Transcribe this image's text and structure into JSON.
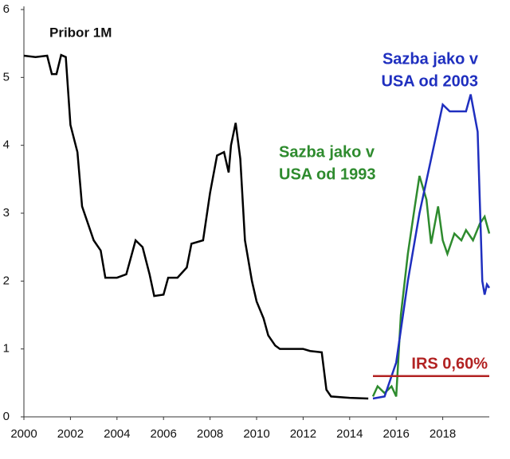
{
  "chart_data": {
    "type": "line",
    "xlim": [
      2000,
      2020
    ],
    "xticks": [
      2000,
      2002,
      2004,
      2006,
      2008,
      2010,
      2012,
      2014,
      2016,
      2018
    ],
    "ylim": [
      0,
      6
    ],
    "yticks": [
      0,
      1,
      2,
      3,
      4,
      5,
      6
    ],
    "grid": false,
    "series": [
      {
        "name": "Pribor 1M",
        "color": "#000000",
        "x": [
          2000,
          2000.5,
          2001,
          2001.2,
          2001.4,
          2001.6,
          2001.8,
          2002,
          2002.3,
          2002.5,
          2002.8,
          2003,
          2003.3,
          2003.5,
          2004,
          2004.4,
          2004.8,
          2005.1,
          2005.4,
          2005.6,
          2006,
          2006.2,
          2006.6,
          2007,
          2007.2,
          2007.7,
          2008,
          2008.3,
          2008.6,
          2008.8,
          2008.9,
          2009.1,
          2009.3,
          2009.5,
          2009.8,
          2010,
          2010.3,
          2010.5,
          2010.8,
          2011,
          2012,
          2012.3,
          2012.8,
          2013,
          2013.2,
          2014,
          2014.8
        ],
        "values": [
          5.32,
          5.3,
          5.32,
          5.05,
          5.05,
          5.33,
          5.3,
          4.3,
          3.9,
          3.1,
          2.8,
          2.6,
          2.45,
          2.05,
          2.05,
          2.1,
          2.6,
          2.5,
          2.1,
          1.78,
          1.8,
          2.05,
          2.05,
          2.2,
          2.55,
          2.6,
          3.3,
          3.85,
          3.9,
          3.6,
          4.0,
          4.33,
          3.8,
          2.6,
          2.0,
          1.7,
          1.45,
          1.2,
          1.05,
          1.0,
          1.0,
          0.97,
          0.95,
          0.4,
          0.3,
          0.28,
          0.27
        ]
      },
      {
        "name": [
          "Sazba jako v",
          "USA od 1993"
        ],
        "color": "#2e8b2e",
        "x": [
          2015,
          2015.2,
          2015.5,
          2015.8,
          2016,
          2016.2,
          2016.5,
          2016.8,
          2017,
          2017.3,
          2017.5,
          2017.8,
          2018,
          2018.2,
          2018.5,
          2018.8,
          2019,
          2019.3,
          2019.6,
          2019.8,
          2020
        ],
        "values": [
          0.3,
          0.45,
          0.35,
          0.45,
          0.3,
          1.5,
          2.4,
          3.1,
          3.55,
          3.2,
          2.55,
          3.1,
          2.6,
          2.4,
          2.7,
          2.6,
          2.75,
          2.6,
          2.85,
          2.95,
          2.7
        ]
      },
      {
        "name": [
          "Sazba jako v",
          "USA od 2003"
        ],
        "color": "#1f2fbf",
        "x": [
          2015,
          2015.5,
          2016,
          2016.5,
          2017,
          2017.5,
          2018,
          2018.3,
          2019,
          2019.2,
          2019.5,
          2019.7,
          2019.8,
          2019.9,
          2020
        ],
        "values": [
          0.27,
          0.3,
          0.8,
          2.0,
          3.0,
          3.8,
          4.6,
          4.5,
          4.5,
          4.75,
          4.2,
          2.0,
          1.8,
          1.95,
          1.9
        ]
      },
      {
        "name": "IRS 0,60%",
        "color": "#b22222",
        "x": [
          2015,
          2020
        ],
        "values": [
          0.6,
          0.6
        ]
      }
    ]
  }
}
